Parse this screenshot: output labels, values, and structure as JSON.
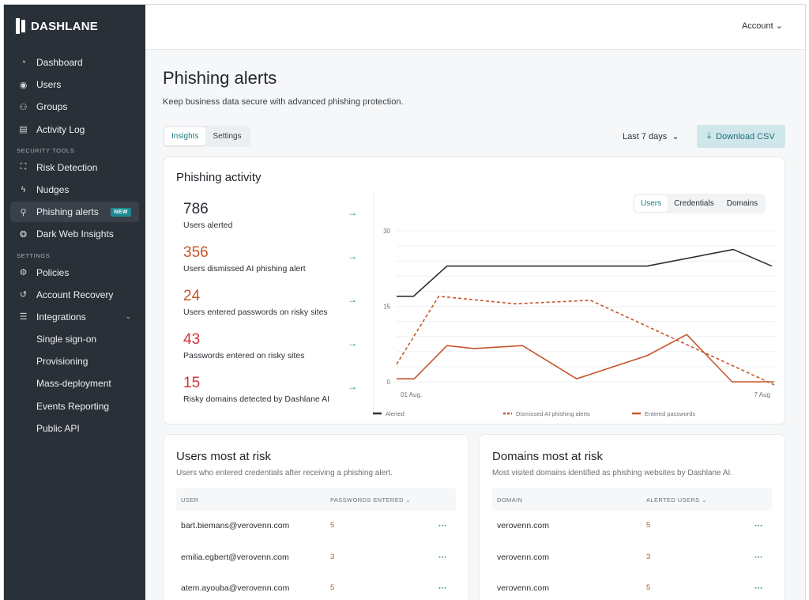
{
  "brand": "DASHLANE",
  "sidebar": {
    "items": [
      {
        "label": "Dashboard",
        "icon": "gauge-icon"
      },
      {
        "label": "Users",
        "icon": "user-circle-icon"
      },
      {
        "label": "Groups",
        "icon": "group-icon"
      },
      {
        "label": "Activity Log",
        "icon": "document-icon"
      }
    ],
    "security_title": "SECURITY TOOLS",
    "security": [
      {
        "label": "Risk Detection",
        "icon": "scan-icon"
      },
      {
        "label": "Nudges",
        "icon": "bolt-icon"
      },
      {
        "label": "Phishing alerts",
        "icon": "phishing-icon",
        "badge": "NEW",
        "active": true
      },
      {
        "label": "Dark Web Insights",
        "icon": "web-icon"
      }
    ],
    "settings_title": "SETTINGS",
    "settings": [
      {
        "label": "Policies",
        "icon": "gear-icon"
      },
      {
        "label": "Account Recovery",
        "icon": "recovery-icon"
      },
      {
        "label": "Integrations",
        "icon": "sliders-icon"
      }
    ],
    "integrations": [
      "Single sign-on",
      "Provisioning",
      "Mass-deployment",
      "Events Reporting",
      "Public API"
    ]
  },
  "header": {
    "account": "Account"
  },
  "page": {
    "title": "Phishing alerts",
    "subtitle": "Keep business data secure with advanced phishing protection.",
    "tabs": [
      "Insights",
      "Settings"
    ],
    "range": "Last 7 days",
    "download": "Download CSV"
  },
  "activity": {
    "title": "Phishing activity",
    "stats": [
      {
        "value": "786",
        "label": "Users alerted",
        "color": "#2b2f35"
      },
      {
        "value": "356",
        "label": "Users dismissed AI phishing alert",
        "color": "#c5572b"
      },
      {
        "value": "24",
        "label": "Users entered passwords on risky sites",
        "color": "#c5572b"
      },
      {
        "value": "43",
        "label": "Passwords entered on risky sites",
        "color": "#d0343a"
      },
      {
        "value": "15",
        "label": "Risky domains detected by Dashlane AI",
        "color": "#d0343a"
      }
    ],
    "chart_tabs": [
      "Users",
      "Credentials",
      "Domains"
    ]
  },
  "chart_data": {
    "type": "line",
    "x_ticks": [
      "01 Aug.",
      "7 Aug"
    ],
    "y_ticks": [
      "0",
      "15",
      "30"
    ],
    "ylim": [
      0,
      30
    ],
    "xlim": [
      0,
      6
    ],
    "grid": true,
    "legend": "bottom",
    "series": [
      {
        "name": "Alerted",
        "color": "#2a3038",
        "dashed": false,
        "points": [
          [
            0,
            17
          ],
          [
            0.27,
            17
          ],
          [
            0.8,
            23
          ],
          [
            3.98,
            23
          ],
          [
            5.35,
            26.3
          ],
          [
            5.96,
            23
          ]
        ]
      },
      {
        "name": "Dismissed AI phishing alerts",
        "color": "#c5572b",
        "dashed": true,
        "points": [
          [
            0,
            3.5
          ],
          [
            0.67,
            17
          ],
          [
            1.88,
            15.5
          ],
          [
            3.08,
            16.2
          ],
          [
            6,
            -0.6
          ]
        ]
      },
      {
        "name": "Entered passwords",
        "color": "#c5572b",
        "dashed": false,
        "points": [
          [
            0,
            0.6
          ],
          [
            0.28,
            0.6
          ],
          [
            0.8,
            7.2
          ],
          [
            1.23,
            6.6
          ],
          [
            2.0,
            7.2
          ],
          [
            2.86,
            0.6
          ],
          [
            3.98,
            5.2
          ],
          [
            4.61,
            9.4
          ],
          [
            5.33,
            0
          ],
          [
            6,
            0
          ]
        ]
      }
    ]
  },
  "users_table": {
    "title": "Users most at risk",
    "desc": "Users who entered credentials after receiving a phishing alert.",
    "col1": "USER",
    "col2": "PASSWORDS ENTERED",
    "rows": [
      {
        "name": "bart.biemans@verovenn.com",
        "value": "5"
      },
      {
        "name": "emilia.egbert@verovenn.com",
        "value": "3"
      },
      {
        "name": "atem.ayouba@verovenn.com",
        "value": "5"
      }
    ]
  },
  "domains_table": {
    "title": "Domains most at risk",
    "desc": "Most visited domains identified as phishing websites by Dashlane AI.",
    "col1": "DOMAIN",
    "col2": "ALERTED USERS",
    "rows": [
      {
        "name": "verovenn.com",
        "value": "5"
      },
      {
        "name": "verovenn.com",
        "value": "3"
      },
      {
        "name": "verovenn.com",
        "value": "5"
      }
    ]
  }
}
